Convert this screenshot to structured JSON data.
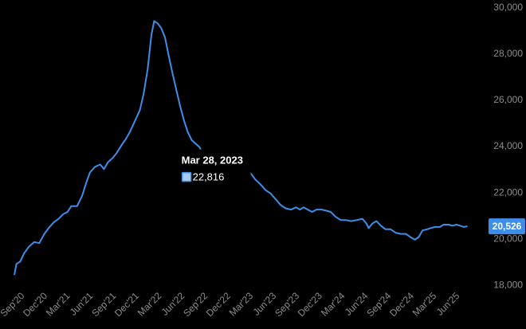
{
  "chart_data": {
    "type": "line",
    "y_axis_position": "right",
    "ylim": [
      17500,
      30000
    ],
    "yticks": [
      18000,
      20000,
      22000,
      24000,
      26000,
      28000,
      30000
    ],
    "ytick_labels": [
      "18,000",
      "20,000",
      "22,000",
      "24,000",
      "26,000",
      "28,000",
      "30,000"
    ],
    "x_ticks": [
      {
        "label": "Sep'20",
        "date": "2020-09"
      },
      {
        "label": "Dec'20",
        "date": "2020-12"
      },
      {
        "label": "Mar'21",
        "date": "2021-03"
      },
      {
        "label": "Jun'21",
        "date": "2021-06"
      },
      {
        "label": "Sep'21",
        "date": "2021-09"
      },
      {
        "label": "Dec'21",
        "date": "2021-12"
      },
      {
        "label": "Mar'22",
        "date": "2022-03"
      },
      {
        "label": "Jun'22",
        "date": "2022-06"
      },
      {
        "label": "Sep'22",
        "date": "2022-09"
      },
      {
        "label": "Dec'22",
        "date": "2022-12"
      },
      {
        "label": "Mar'23",
        "date": "2023-03"
      },
      {
        "label": "Jun'23",
        "date": "2023-06"
      },
      {
        "label": "Sep'23",
        "date": "2023-09"
      },
      {
        "label": "Dec'23",
        "date": "2023-12"
      },
      {
        "label": "Mar'24",
        "date": "2024-03"
      },
      {
        "label": "Jun'24",
        "date": "2024-06"
      },
      {
        "label": "Sep'24",
        "date": "2024-09"
      },
      {
        "label": "Dec'24",
        "date": "2024-12"
      },
      {
        "label": "Mar'25",
        "date": "2025-03"
      },
      {
        "label": "Jun'25",
        "date": "2025-06"
      }
    ],
    "xlim": [
      "2020-08-15",
      "2025-10-15"
    ],
    "series_color": "#3d8ee8",
    "series": [
      {
        "points": [
          [
            "2020-08-28",
            18450
          ],
          [
            "2020-09-05",
            18900
          ],
          [
            "2020-09-20",
            19000
          ],
          [
            "2020-10-05",
            19350
          ],
          [
            "2020-10-25",
            19650
          ],
          [
            "2020-11-15",
            19850
          ],
          [
            "2020-12-05",
            19800
          ],
          [
            "2020-12-25",
            20200
          ],
          [
            "2021-01-15",
            20500
          ],
          [
            "2021-02-01",
            20700
          ],
          [
            "2021-02-20",
            20850
          ],
          [
            "2021-03-10",
            21050
          ],
          [
            "2021-03-28",
            21150
          ],
          [
            "2021-04-12",
            21400
          ],
          [
            "2021-05-05",
            21400
          ],
          [
            "2021-05-25",
            21850
          ],
          [
            "2021-06-10",
            22400
          ],
          [
            "2021-06-25",
            22850
          ],
          [
            "2021-07-15",
            23100
          ],
          [
            "2021-08-05",
            23200
          ],
          [
            "2021-08-20",
            23000
          ],
          [
            "2021-09-05",
            23300
          ],
          [
            "2021-09-25",
            23500
          ],
          [
            "2021-10-10",
            23700
          ],
          [
            "2021-10-30",
            24050
          ],
          [
            "2021-11-15",
            24300
          ],
          [
            "2021-12-01",
            24600
          ],
          [
            "2021-12-20",
            25050
          ],
          [
            "2022-01-10",
            25550
          ],
          [
            "2022-01-25",
            26250
          ],
          [
            "2022-02-10",
            27300
          ],
          [
            "2022-02-25",
            28800
          ],
          [
            "2022-03-08",
            29400
          ],
          [
            "2022-03-22",
            29300
          ],
          [
            "2022-04-05",
            29100
          ],
          [
            "2022-04-20",
            28700
          ],
          [
            "2022-05-05",
            27900
          ],
          [
            "2022-05-20",
            27150
          ],
          [
            "2022-06-05",
            26400
          ],
          [
            "2022-06-20",
            25700
          ],
          [
            "2022-07-05",
            25100
          ],
          [
            "2022-07-20",
            24600
          ],
          [
            "2022-08-05",
            24250
          ],
          [
            "2022-08-20",
            24100
          ],
          [
            "2022-09-05",
            23950
          ],
          [
            "2022-09-20",
            23600
          ],
          [
            "2022-10-05",
            23300
          ],
          [
            "2022-10-25",
            23100
          ],
          [
            "2022-11-15",
            22850
          ],
          [
            "2022-12-05",
            22700
          ],
          [
            "2022-12-25",
            22800
          ],
          [
            "2023-01-15",
            22900
          ],
          [
            "2023-02-01",
            22850
          ],
          [
            "2023-02-15",
            22800
          ],
          [
            "2023-03-01",
            22950
          ],
          [
            "2023-03-15",
            23000
          ],
          [
            "2023-03-28",
            22816
          ],
          [
            "2023-04-15",
            22550
          ],
          [
            "2023-05-05",
            22350
          ],
          [
            "2023-05-25",
            22100
          ],
          [
            "2023-06-15",
            21950
          ],
          [
            "2023-07-05",
            21700
          ],
          [
            "2023-07-25",
            21450
          ],
          [
            "2023-08-15",
            21300
          ],
          [
            "2023-09-05",
            21250
          ],
          [
            "2023-09-25",
            21350
          ],
          [
            "2023-10-10",
            21250
          ],
          [
            "2023-10-25",
            21350
          ],
          [
            "2023-11-10",
            21250
          ],
          [
            "2023-11-28",
            21150
          ],
          [
            "2023-12-15",
            21250
          ],
          [
            "2024-01-05",
            21250
          ],
          [
            "2024-01-25",
            21200
          ],
          [
            "2024-02-10",
            21150
          ],
          [
            "2024-02-28",
            20950
          ],
          [
            "2024-03-20",
            20800
          ],
          [
            "2024-04-10",
            20800
          ],
          [
            "2024-05-01",
            20750
          ],
          [
            "2024-05-25",
            20800
          ],
          [
            "2024-06-15",
            20850
          ],
          [
            "2024-07-01",
            20650
          ],
          [
            "2024-07-10",
            20450
          ],
          [
            "2024-07-25",
            20650
          ],
          [
            "2024-08-10",
            20750
          ],
          [
            "2024-08-28",
            20550
          ],
          [
            "2024-09-15",
            20400
          ],
          [
            "2024-10-05",
            20400
          ],
          [
            "2024-10-25",
            20250
          ],
          [
            "2024-11-15",
            20200
          ],
          [
            "2024-12-05",
            20200
          ],
          [
            "2024-12-25",
            20050
          ],
          [
            "2025-01-10",
            19950
          ],
          [
            "2025-01-25",
            20050
          ],
          [
            "2025-02-10",
            20350
          ],
          [
            "2025-02-28",
            20400
          ],
          [
            "2025-03-15",
            20450
          ],
          [
            "2025-04-01",
            20500
          ],
          [
            "2025-04-20",
            20500
          ],
          [
            "2025-05-05",
            20600
          ],
          [
            "2025-05-25",
            20600
          ],
          [
            "2025-06-10",
            20550
          ],
          [
            "2025-06-25",
            20600
          ],
          [
            "2025-07-10",
            20550
          ],
          [
            "2025-07-25",
            20500
          ],
          [
            "2025-08-05",
            20526
          ]
        ]
      }
    ],
    "tooltip": {
      "date": "Mar 28, 2023",
      "value": "22,816",
      "point": [
        "2023-03-28",
        22816
      ]
    },
    "last_value": {
      "label": "20,526",
      "value": 20526
    },
    "grid": false
  }
}
